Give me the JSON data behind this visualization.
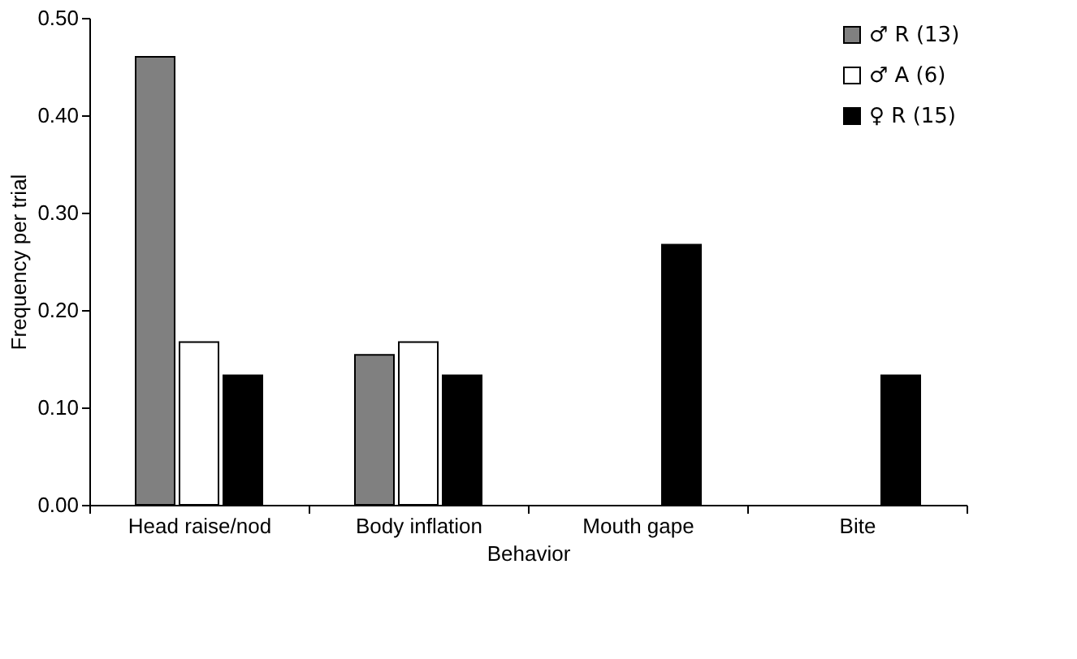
{
  "chart_data": {
    "type": "bar",
    "xlabel": "Behavior",
    "ylabel": "Frequency  per  trial",
    "categories": [
      "Head raise/nod",
      "Body inflation",
      "Mouth gape",
      "Bite"
    ],
    "series": [
      {
        "name": "♂ R (13)",
        "color": "#808080",
        "values": [
          0.46,
          0.154,
          null,
          null
        ]
      },
      {
        "name": "♂ A (6)",
        "color": "#ffffff",
        "values": [
          0.167,
          0.167,
          null,
          null
        ]
      },
      {
        "name": "♀ R (15)",
        "color": "#000000",
        "values": [
          0.133,
          0.133,
          0.267,
          0.133
        ]
      }
    ],
    "ylim": [
      0,
      0.5
    ],
    "yticks": [
      {
        "value": 0,
        "label": "0.00"
      },
      {
        "value": 0.1,
        "label": "0.10"
      },
      {
        "value": 0.2,
        "label": "0.20"
      },
      {
        "value": 0.3,
        "label": "0.30"
      },
      {
        "value": 0.4,
        "label": "0.40"
      },
      {
        "value": 0.5,
        "label": "0.50"
      }
    ],
    "grid": false,
    "legend": "top right"
  }
}
